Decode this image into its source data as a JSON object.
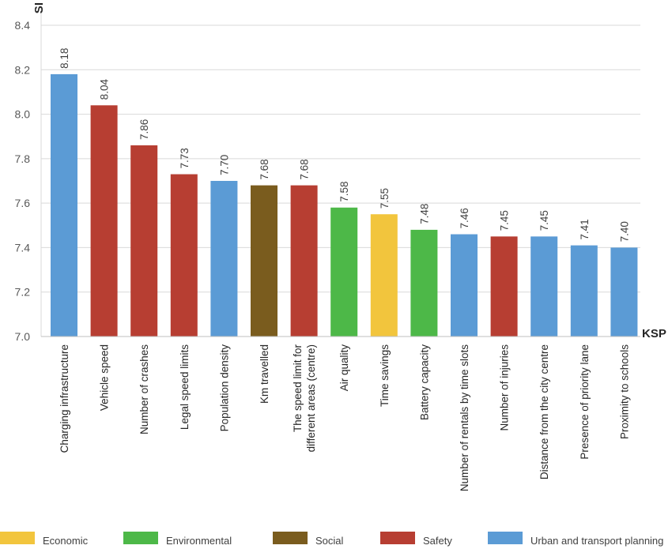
{
  "chart_data": {
    "type": "bar",
    "ylabel": "SI",
    "xlabel": "KSP",
    "ylim": [
      7.0,
      8.4
    ],
    "yticks": [
      "7.0",
      "7.2",
      "7.4",
      "7.6",
      "7.8",
      "8.0",
      "8.2",
      "8.4"
    ],
    "grid": true,
    "legend_position": "bottom",
    "categories": [
      [
        "Charging infrastructure"
      ],
      [
        "Vehicle speed"
      ],
      [
        "Number of crashes"
      ],
      [
        "Legal speed limits"
      ],
      [
        "Population density"
      ],
      [
        "Km travelled"
      ],
      [
        "The speed limit for",
        "different areas (centre)"
      ],
      [
        "Air quality"
      ],
      [
        "Time savings"
      ],
      [
        "Battery capacity"
      ],
      [
        "Number of rentals by time slots"
      ],
      [
        "Number of injuries"
      ],
      [
        "Distance from the city centre"
      ],
      [
        "Presence of priority lane"
      ],
      [
        "Proximity to schools"
      ]
    ],
    "values": [
      8.18,
      8.04,
      7.86,
      7.73,
      7.7,
      7.68,
      7.68,
      7.58,
      7.55,
      7.48,
      7.46,
      7.45,
      7.45,
      7.41,
      7.4
    ],
    "value_labels": [
      "8.18",
      "8.04",
      "7.86",
      "7.73",
      "7.70",
      "7.68",
      "7.68",
      "7.58",
      "7.55",
      "7.48",
      "7.46",
      "7.45",
      "7.45",
      "7.41",
      "7.40"
    ],
    "groups": [
      "Urban and transport planning",
      "Safety",
      "Safety",
      "Safety",
      "Urban and transport planning",
      "Social",
      "Safety",
      "Environmental",
      "Economic",
      "Environmental",
      "Urban and transport planning",
      "Safety",
      "Urban and transport planning",
      "Urban and transport planning",
      "Urban and transport planning"
    ],
    "legend": [
      {
        "name": "Economic",
        "color": "#F2C53D"
      },
      {
        "name": "Environmental",
        "color": "#4DB848"
      },
      {
        "name": "Social",
        "color": "#7A5C1E"
      },
      {
        "name": "Safety",
        "color": "#B73E32"
      },
      {
        "name": "Urban and transport planning",
        "color": "#5B9BD5"
      }
    ]
  }
}
